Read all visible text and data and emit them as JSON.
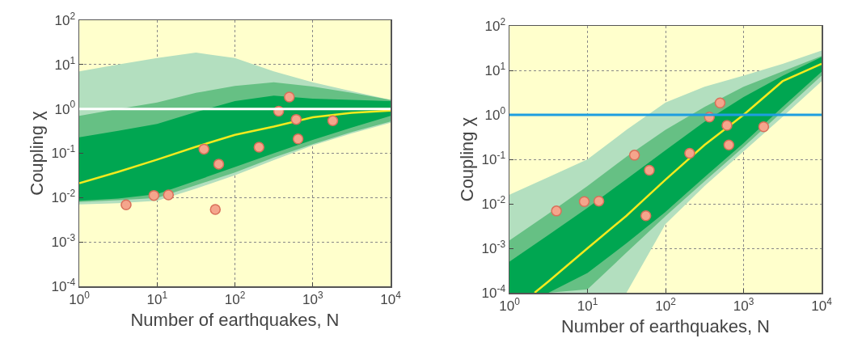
{
  "chart_data": [
    {
      "type": "scatter",
      "xlabel": "Number of earthquakes, N",
      "ylabel": "Coupling χ",
      "log": "xy",
      "grid": true,
      "xlim": [
        1,
        10000
      ],
      "ylim": [
        0.0001,
        100
      ],
      "xticks": [
        {
          "value": 1,
          "label": "10$^{0}$"
        },
        {
          "value": 10,
          "label": "10$^{1}$"
        },
        {
          "value": 100,
          "label": "10$^{2}$"
        },
        {
          "value": 1000,
          "label": "10$^{3}$"
        },
        {
          "value": 10000,
          "label": "10$^{4}$"
        }
      ],
      "yticks": [
        {
          "value": 0.0001,
          "label": "10$^{-4}$"
        },
        {
          "value": 0.001,
          "label": "10$^{-3}$"
        },
        {
          "value": 0.01,
          "label": "10$^{-2}$"
        },
        {
          "value": 0.1,
          "label": "10$^{-1}$"
        },
        {
          "value": 1,
          "label": "10$^{0}$"
        },
        {
          "value": 10,
          "label": "10$^{1}$"
        },
        {
          "value": 100,
          "label": "10$^{2}$"
        }
      ],
      "ref_lines": [
        {
          "axis": "y",
          "value": 1,
          "color": "#ffffff"
        }
      ],
      "series": [
        {
          "type": "line",
          "color": "#b3dfbf",
          "x": [
            1,
            3.16,
            10,
            31.6,
            100,
            316,
            1000,
            3162,
            10000
          ],
          "values": [
            null,
            null,
            null,
            null,
            null,
            null,
            null,
            null,
            null
          ],
          "upper": [
            7,
            10,
            14,
            18.6,
            14,
            7,
            4,
            2.5,
            1.6
          ],
          "lower": [
            0.007,
            0.0075,
            0.0085,
            0.016,
            0.032,
            0.07,
            0.15,
            0.28,
            0.49
          ]
        },
        {
          "type": "line",
          "color": "#66c084",
          "x": [
            1,
            3.16,
            10,
            31.6,
            100,
            316,
            1000,
            3162,
            10000
          ],
          "values": [
            null,
            null,
            null,
            null,
            null,
            null,
            null,
            null,
            null
          ],
          "upper": [
            0.7,
            1,
            1.4,
            2.3,
            3.3,
            4,
            3.2,
            2.3,
            1.6
          ],
          "lower": [
            0.008,
            0.0088,
            0.0098,
            0.019,
            0.037,
            0.08,
            0.16,
            0.3,
            0.52
          ]
        },
        {
          "type": "line",
          "color": "#00a651",
          "x": [
            1,
            3.16,
            10,
            31.6,
            100,
            316,
            1000,
            3162,
            10000
          ],
          "values": [
            null,
            null,
            null,
            null,
            null,
            null,
            null,
            null,
            null
          ],
          "upper": [
            0.23,
            0.32,
            0.46,
            0.85,
            1.5,
            2,
            1.7,
            1.6,
            1.5
          ],
          "lower": [
            0.0085,
            0.0095,
            0.012,
            0.024,
            0.049,
            0.1,
            0.2,
            0.38,
            0.7
          ]
        },
        {
          "type": "line",
          "color": "#f2ea1e",
          "x": [
            1,
            3.16,
            10,
            31.6,
            100,
            316,
            1000,
            3162,
            10000
          ],
          "values": [
            0.021,
            0.038,
            0.072,
            0.14,
            0.26,
            0.4,
            0.65,
            0.82,
            0.92
          ]
        },
        {
          "type": "scatter",
          "marker": "circle",
          "color": "#f5a58c",
          "x": [
            4,
            9.1,
            14,
            40,
            62,
            56,
            204,
            365,
            500,
            613,
            648,
            1810
          ],
          "values": [
            0.0069,
            0.0112,
            0.0115,
            0.124,
            0.057,
            0.0054,
            0.137,
            0.89,
            1.85,
            0.58,
            0.21,
            0.54
          ]
        }
      ]
    },
    {
      "type": "scatter",
      "xlabel": "Number of earthquakes, N",
      "ylabel": "Coupling χ",
      "log": "xy",
      "grid": true,
      "xlim": [
        1,
        10000
      ],
      "ylim": [
        0.0001,
        100
      ],
      "xticks": [
        {
          "value": 1,
          "label": "10$^{0}$"
        },
        {
          "value": 10,
          "label": "10$^{1}$"
        },
        {
          "value": 100,
          "label": "10$^{2}$"
        },
        {
          "value": 1000,
          "label": "10$^{3}$"
        },
        {
          "value": 10000,
          "label": "10$^{4}$"
        }
      ],
      "yticks": [
        {
          "value": 0.0001,
          "label": "10$^{-4}$"
        },
        {
          "value": 0.001,
          "label": "10$^{-3}$"
        },
        {
          "value": 0.01,
          "label": "10$^{-2}$"
        },
        {
          "value": 0.1,
          "label": "10$^{-1}$"
        },
        {
          "value": 1,
          "label": "10$^{0}$"
        },
        {
          "value": 10,
          "label": "10$^{1}$"
        },
        {
          "value": 100,
          "label": "10$^{2}$"
        }
      ],
      "ref_lines": [
        {
          "axis": "y",
          "value": 1,
          "color": "#1e9ee0"
        }
      ],
      "series": [
        {
          "type": "line",
          "color": "#b3dfbf",
          "x": [
            1,
            3.16,
            10,
            31.6,
            100,
            316,
            1000,
            3162,
            10000
          ],
          "values": [
            null,
            null,
            null,
            null,
            null,
            null,
            null,
            null,
            null
          ],
          "upper": [
            0.016,
            0.04,
            0.1,
            0.46,
            1.9,
            4.3,
            7.6,
            14,
            28
          ],
          "lower": [
            0.0001,
            0.0001,
            0.0001,
            0.0001,
            0.0035,
            0.025,
            0.15,
            0.9,
            5.7
          ]
        },
        {
          "type": "line",
          "color": "#66c084",
          "x": [
            1,
            3.16,
            10,
            31.6,
            100,
            316,
            1000,
            3162,
            10000
          ],
          "values": [
            null,
            null,
            null,
            null,
            null,
            null,
            null,
            null,
            null
          ],
          "upper": [
            0.0015,
            0.006,
            0.025,
            0.115,
            0.46,
            1.5,
            4.3,
            9.5,
            21
          ],
          "lower": [
            0.0001,
            0.0001,
            0.00012,
            0.0008,
            0.0053,
            0.032,
            0.19,
            1.2,
            7.6
          ]
        },
        {
          "type": "line",
          "color": "#00a651",
          "x": [
            1,
            3.16,
            10,
            31.6,
            100,
            316,
            1000,
            3162,
            10000
          ],
          "values": [
            null,
            null,
            null,
            null,
            null,
            null,
            null,
            null,
            null
          ],
          "upper": [
            0.0005,
            0.002,
            0.0081,
            0.036,
            0.16,
            0.7,
            2.5,
            7.5,
            20
          ],
          "lower": [
            0.0001,
            0.0001,
            0.00028,
            0.0013,
            0.0066,
            0.04,
            0.23,
            1.5,
            9.3
          ]
        },
        {
          "type": "line",
          "color": "#f2ea1e",
          "x": [
            2.1,
            3.16,
            10,
            31.6,
            100,
            316,
            1000,
            3162,
            10000
          ],
          "values": [
            0.0001,
            0.00018,
            0.001,
            0.0054,
            0.035,
            0.21,
            1,
            5.7,
            14
          ]
        },
        {
          "type": "scatter",
          "marker": "circle",
          "color": "#f5a58c",
          "x": [
            4,
            9.1,
            14,
            40,
            62,
            56,
            204,
            365,
            500,
            613,
            648,
            1810
          ],
          "values": [
            0.0069,
            0.0112,
            0.0115,
            0.124,
            0.057,
            0.0054,
            0.137,
            0.89,
            1.85,
            0.58,
            0.21,
            0.54
          ]
        }
      ]
    }
  ]
}
